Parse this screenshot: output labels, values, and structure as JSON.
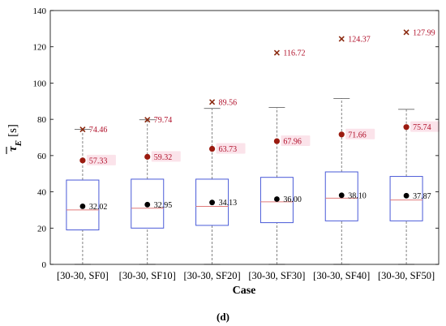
{
  "panel_label": "(d)",
  "chart_data": {
    "type": "box",
    "xlabel": "Case",
    "ylabel_main": "τ",
    "ylabel_sub": "E",
    "ylabel_unit": "[s]",
    "ylim": [
      0,
      140
    ],
    "yticks": [
      0,
      20,
      40,
      60,
      80,
      100,
      120,
      140
    ],
    "grid": false,
    "categories": [
      "[30-30, SF0]",
      "[30-30, SF10]",
      "[30-30, SF20]",
      "[30-30, SF30]",
      "[30-30, SF40]",
      "[30-30, SF50]"
    ],
    "boxes": [
      {
        "whisker_low": 0,
        "q1": 19,
        "median": 30,
        "q3": 46.5,
        "whisker_high": 74.46
      },
      {
        "whisker_low": 0,
        "q1": 20,
        "median": 31,
        "q3": 47,
        "whisker_high": 79.74
      },
      {
        "whisker_low": 0,
        "q1": 21.5,
        "median": 32,
        "q3": 47,
        "whisker_high": 86
      },
      {
        "whisker_low": 0,
        "q1": 23,
        "median": 34.5,
        "q3": 48,
        "whisker_high": 86.5
      },
      {
        "whisker_low": 0,
        "q1": 24,
        "median": 36.5,
        "q3": 51,
        "whisker_high": 91.5
      },
      {
        "whisker_low": 0,
        "q1": 24,
        "median": 35.5,
        "q3": 48.5,
        "whisker_high": 85.5
      }
    ],
    "means": [
      32.02,
      32.95,
      34.13,
      36.0,
      38.1,
      37.87
    ],
    "mean_labels": [
      "32.02",
      "32.95",
      "34.13",
      "36.00",
      "38.10",
      "37.87"
    ],
    "highlighted_points": [
      57.33,
      59.32,
      63.73,
      67.96,
      71.66,
      75.74
    ],
    "highlighted_labels": [
      "57.33",
      "59.32",
      "63.73",
      "67.96",
      "71.66",
      "75.74"
    ],
    "max_points": [
      74.46,
      79.74,
      89.56,
      116.72,
      124.37,
      127.99
    ],
    "max_labels": [
      "74.46",
      "79.74",
      "89.56",
      "116.72",
      "124.37",
      "127.99"
    ],
    "colors": {
      "box": "#4a5ad8",
      "median": "#e07b7b",
      "whisker": "#666666",
      "mean": "#000000",
      "highlight": "#9b1b10",
      "max_marker": "#8b2a10",
      "value_text": "#b0102a",
      "label_bg": "#fbe3ea"
    }
  }
}
